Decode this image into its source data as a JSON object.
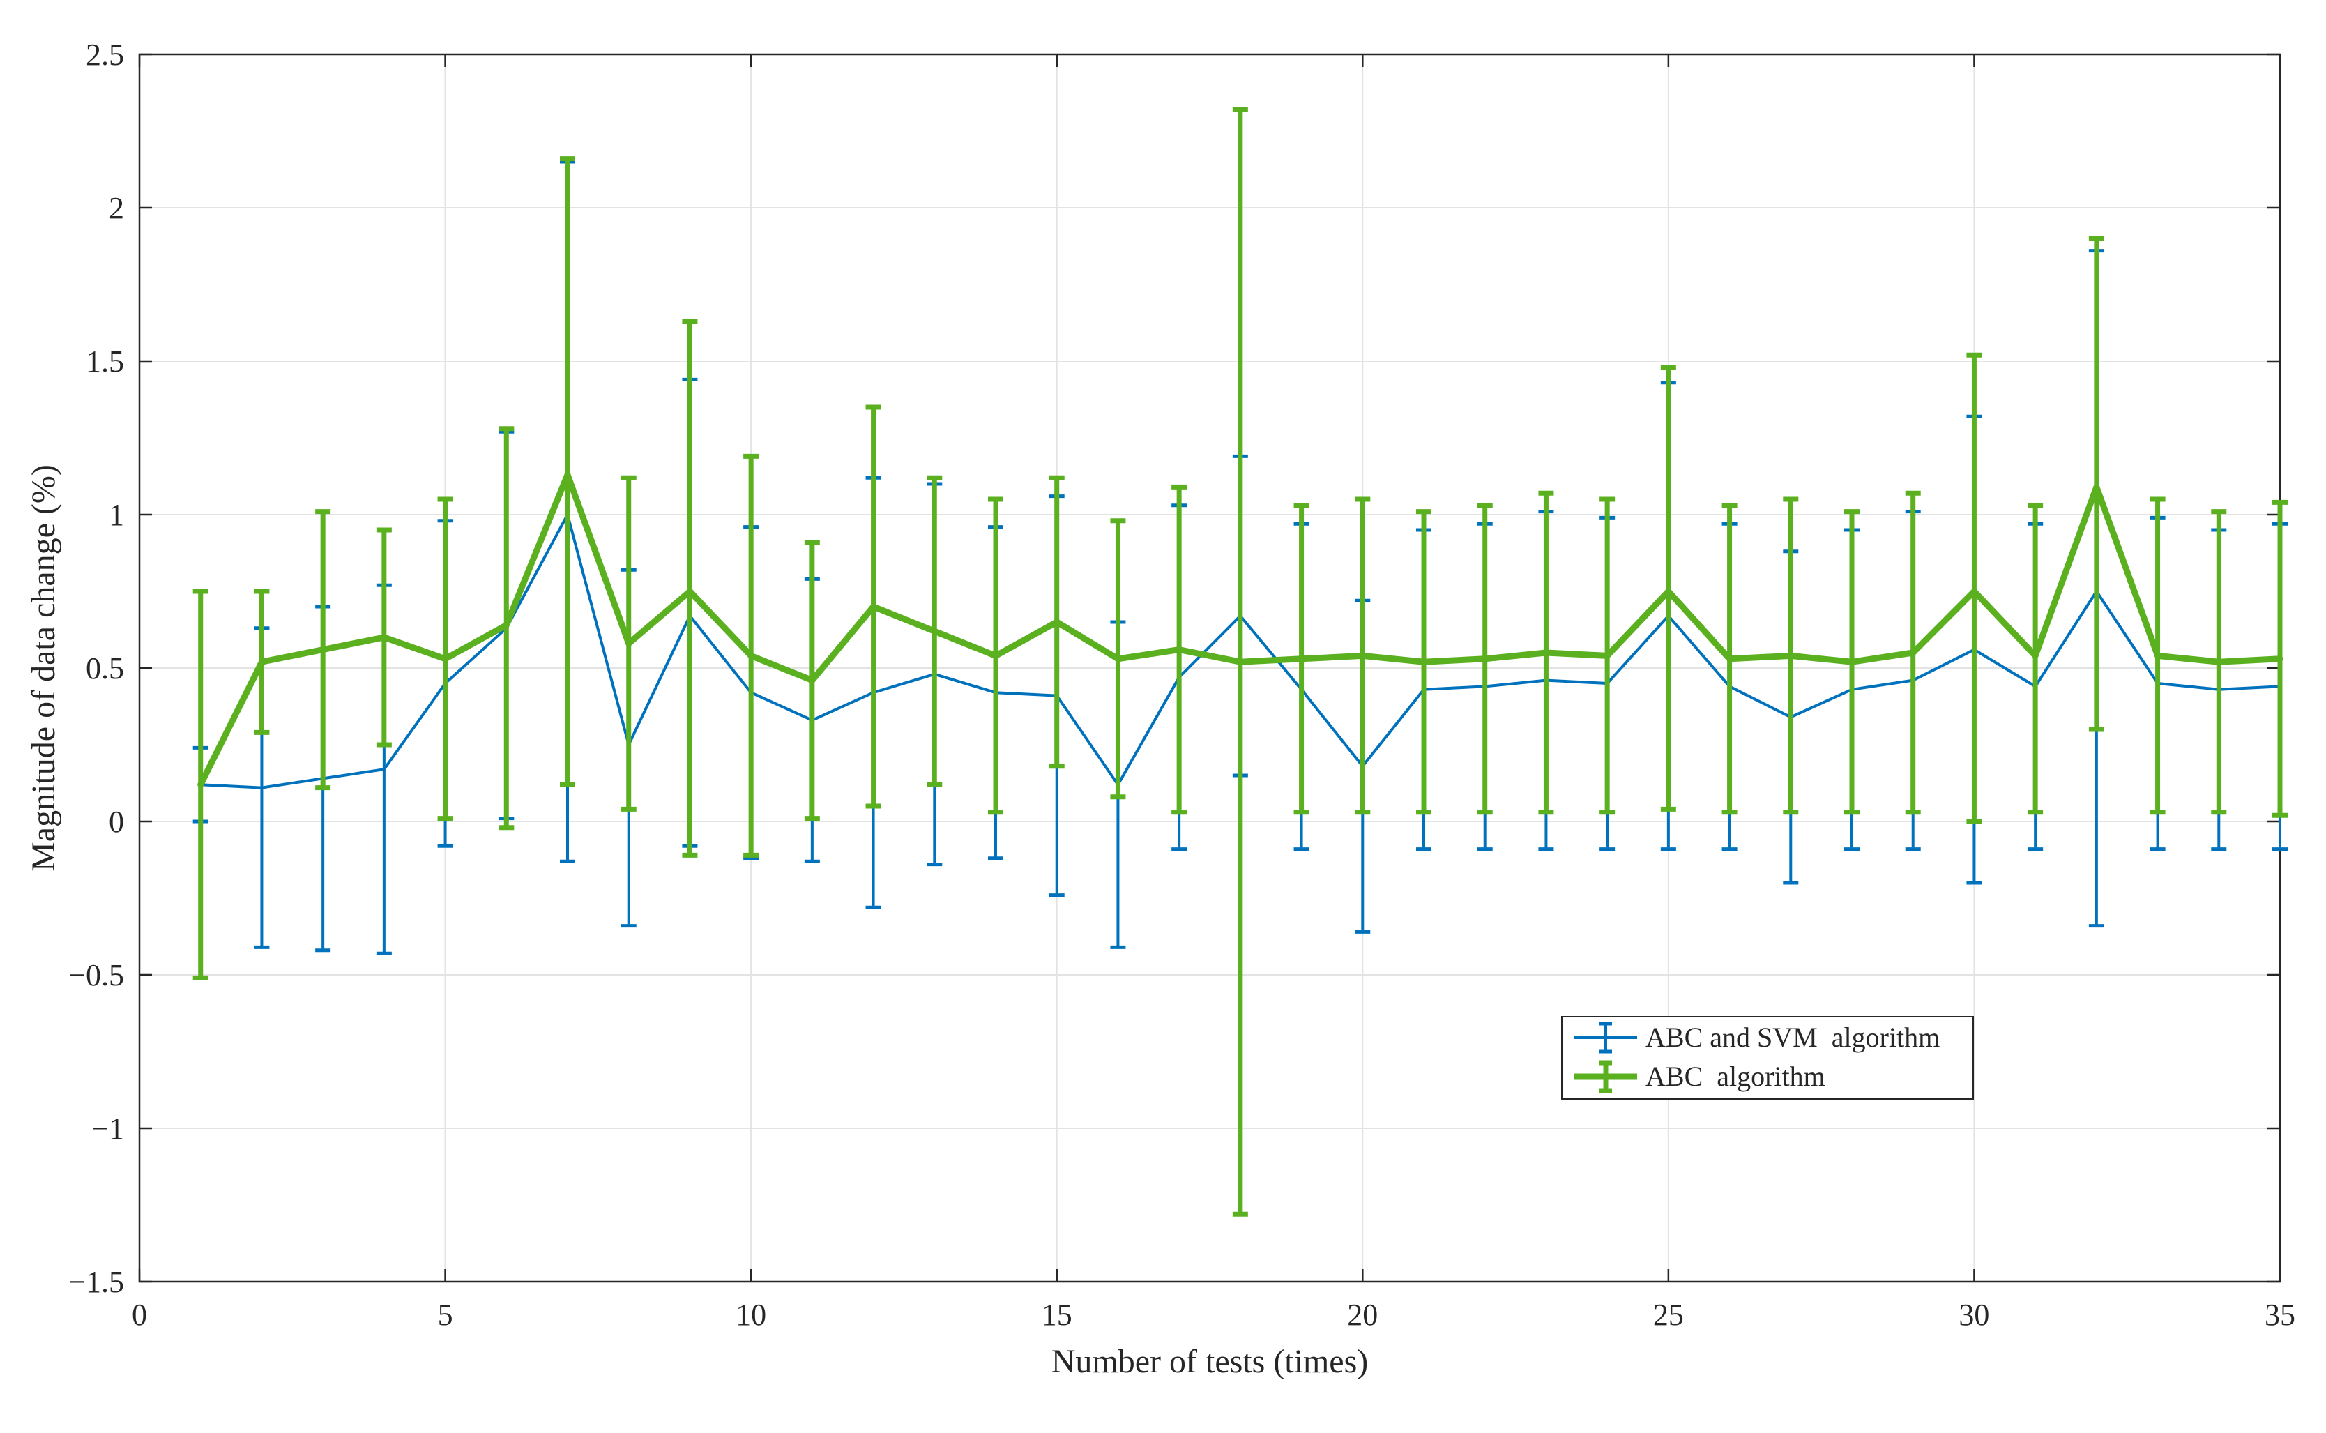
{
  "chart_data": {
    "type": "line",
    "subtype": "errorbar",
    "title": "",
    "xlabel": "Number of tests (times)",
    "ylabel": "Magnitude of data change (%)",
    "xlim": [
      0,
      35
    ],
    "ylim": [
      -1.5,
      2.5
    ],
    "grid": true,
    "legend_position": "center-right",
    "x_ticks": [
      0,
      5,
      10,
      15,
      20,
      25,
      30,
      35
    ],
    "x_tick_labels": [
      "0",
      "5",
      "10",
      "15",
      "20",
      "25",
      "30",
      "35"
    ],
    "y_ticks": [
      -1.5,
      -1,
      -0.5,
      0,
      0.5,
      1,
      1.5,
      2,
      2.5
    ],
    "y_tick_labels": [
      "−1.5",
      "−1",
      "−0.5",
      "0",
      "0.5",
      "1",
      "1.5",
      "2",
      "2.5"
    ],
    "x": [
      1,
      2,
      3,
      4,
      5,
      6,
      7,
      8,
      9,
      10,
      11,
      12,
      13,
      14,
      15,
      16,
      17,
      18,
      19,
      20,
      21,
      22,
      23,
      24,
      25,
      26,
      27,
      28,
      29,
      30,
      31,
      32,
      33,
      34,
      35
    ],
    "series": [
      {
        "name": "ABC and SVM  algorithm",
        "color": "#0072BD",
        "values": [
          0.12,
          0.11,
          0.14,
          0.17,
          0.45,
          0.63,
          1.0,
          0.25,
          0.67,
          0.42,
          0.33,
          0.42,
          0.48,
          0.42,
          0.41,
          0.12,
          0.47,
          0.67,
          0.43,
          0.18,
          0.43,
          0.44,
          0.46,
          0.45,
          0.67,
          0.44,
          0.34,
          0.43,
          0.46,
          0.56,
          0.44,
          0.75,
          0.45,
          0.43,
          0.44
        ],
        "lower": [
          0.0,
          -0.41,
          -0.42,
          -0.43,
          -0.08,
          0.01,
          -0.13,
          -0.34,
          -0.08,
          -0.12,
          -0.13,
          -0.28,
          -0.14,
          -0.12,
          -0.24,
          -0.41,
          -0.09,
          0.15,
          -0.09,
          -0.36,
          -0.09,
          -0.09,
          -0.09,
          -0.09,
          -0.09,
          -0.09,
          -0.2,
          -0.09,
          -0.09,
          -0.2,
          -0.09,
          -0.34,
          -0.09,
          -0.09,
          -0.09
        ],
        "upper": [
          0.24,
          0.63,
          0.7,
          0.77,
          0.98,
          1.27,
          2.15,
          0.82,
          1.44,
          0.96,
          0.79,
          1.12,
          1.1,
          0.96,
          1.06,
          0.65,
          1.03,
          1.19,
          0.97,
          0.72,
          0.95,
          0.97,
          1.01,
          0.99,
          1.43,
          0.97,
          0.88,
          0.95,
          1.01,
          1.32,
          0.97,
          1.86,
          0.99,
          0.95,
          0.97
        ]
      },
      {
        "name": "ABC  algorithm",
        "color": "#5BB020",
        "values": [
          0.12,
          0.52,
          0.56,
          0.6,
          0.53,
          0.64,
          1.13,
          0.58,
          0.75,
          0.54,
          0.46,
          0.7,
          0.62,
          0.54,
          0.65,
          0.53,
          0.56,
          0.52,
          0.53,
          0.54,
          0.52,
          0.53,
          0.55,
          0.54,
          0.75,
          0.53,
          0.54,
          0.52,
          0.55,
          0.75,
          0.54,
          1.09,
          0.54,
          0.52,
          0.53
        ],
        "lower": [
          -0.51,
          0.29,
          0.11,
          0.25,
          0.01,
          -0.02,
          0.12,
          0.04,
          -0.11,
          -0.11,
          0.01,
          0.05,
          0.12,
          0.03,
          0.18,
          0.08,
          0.03,
          -1.28,
          0.03,
          0.03,
          0.03,
          0.03,
          0.03,
          0.03,
          0.04,
          0.03,
          0.03,
          0.03,
          0.03,
          0.0,
          0.03,
          0.3,
          0.03,
          0.03,
          0.02
        ],
        "upper": [
          0.75,
          0.75,
          1.01,
          0.95,
          1.05,
          1.28,
          2.16,
          1.12,
          1.63,
          1.19,
          0.91,
          1.35,
          1.12,
          1.05,
          1.12,
          0.98,
          1.09,
          2.32,
          1.03,
          1.05,
          1.01,
          1.03,
          1.07,
          1.05,
          1.48,
          1.03,
          1.05,
          1.01,
          1.07,
          1.52,
          1.03,
          1.9,
          1.05,
          1.01,
          1.04
        ]
      }
    ]
  }
}
